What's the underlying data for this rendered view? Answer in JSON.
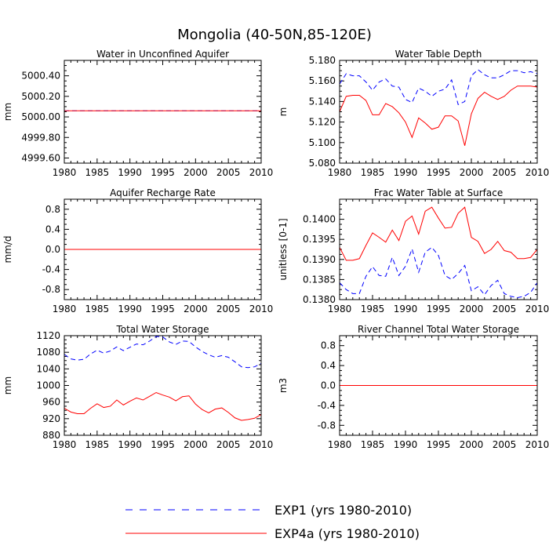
{
  "figure": {
    "title": "Mongolia (40-50N,85-120E)"
  },
  "legend": [
    {
      "label": "EXP1 (yrs 1980-2010)",
      "color": "#0000ff",
      "dash": "dashed"
    },
    {
      "label": "EXP4a (yrs 1980-2010)",
      "color": "#ff0000",
      "dash": "solid"
    }
  ],
  "chart_data": [
    {
      "type": "line",
      "title": "Water in Unconfined Aquifer",
      "ylabel": "mm",
      "xlim": [
        1980,
        2010
      ],
      "ylim": [
        4999.55,
        5000.55
      ],
      "xticks": [
        1980,
        1985,
        1990,
        1995,
        2000,
        2005,
        2010
      ],
      "yticks": [
        4999.6,
        4999.8,
        5000.0,
        5000.2,
        5000.4
      ],
      "ytick_labels": [
        "4999.60",
        "4999.80",
        "5000.00",
        "5000.20",
        "5000.40"
      ],
      "series": [
        {
          "name": "EXP1 (yrs 1980-2010)",
          "color": "#0000ff",
          "dash": "dashed",
          "x": [
            1980,
            2010
          ],
          "y": [
            5000.06,
            5000.06
          ]
        },
        {
          "name": "EXP4a (yrs 1980-2010)",
          "color": "#ff0000",
          "dash": "solid",
          "x": [
            1980,
            2010
          ],
          "y": [
            5000.06,
            5000.06
          ]
        }
      ]
    },
    {
      "type": "line",
      "title": "Water Table Depth",
      "ylabel": "m",
      "xlim": [
        1980,
        2010
      ],
      "ylim": [
        5.08,
        5.18
      ],
      "xticks": [
        1980,
        1985,
        1990,
        1995,
        2000,
        2005,
        2010
      ],
      "yticks": [
        5.08,
        5.1,
        5.12,
        5.14,
        5.16,
        5.18
      ],
      "ytick_labels": [
        "5.080",
        "5.100",
        "5.120",
        "5.140",
        "5.160",
        "5.180"
      ],
      "series": [
        {
          "name": "EXP1 (yrs 1980-2010)",
          "color": "#0000ff",
          "dash": "dashed",
          "x": [
            1980,
            1981,
            1982,
            1983,
            1984,
            1985,
            1986,
            1987,
            1988,
            1989,
            1990,
            1991,
            1992,
            1993,
            1994,
            1995,
            1996,
            1997,
            1998,
            1999,
            2000,
            2001,
            2002,
            2003,
            2004,
            2005,
            2006,
            2007,
            2008,
            2009,
            2010
          ],
          "y": [
            5.157,
            5.167,
            5.165,
            5.165,
            5.159,
            5.151,
            5.159,
            5.162,
            5.155,
            5.154,
            5.142,
            5.139,
            5.153,
            5.15,
            5.145,
            5.15,
            5.152,
            5.161,
            5.137,
            5.14,
            5.165,
            5.171,
            5.166,
            5.163,
            5.163,
            5.166,
            5.17,
            5.17,
            5.168,
            5.169,
            5.167
          ]
        },
        {
          "name": "EXP4a (yrs 1980-2010)",
          "color": "#ff0000",
          "dash": "solid",
          "x": [
            1980,
            1981,
            1982,
            1983,
            1984,
            1985,
            1986,
            1987,
            1988,
            1989,
            1990,
            1991,
            1992,
            1993,
            1994,
            1995,
            1996,
            1997,
            1998,
            1999,
            2000,
            2001,
            2002,
            2003,
            2004,
            2005,
            2006,
            2007,
            2008,
            2009,
            2010
          ],
          "y": [
            5.13,
            5.145,
            5.146,
            5.146,
            5.141,
            5.127,
            5.127,
            5.138,
            5.135,
            5.129,
            5.12,
            5.105,
            5.124,
            5.119,
            5.113,
            5.115,
            5.126,
            5.126,
            5.121,
            5.097,
            5.128,
            5.143,
            5.149,
            5.145,
            5.142,
            5.145,
            5.151,
            5.155,
            5.155,
            5.155,
            5.154
          ]
        }
      ]
    },
    {
      "type": "line",
      "title": "Aquifer Recharge Rate",
      "ylabel": "mm/d",
      "xlim": [
        1980,
        2010
      ],
      "ylim": [
        -1.0,
        1.0
      ],
      "xticks": [
        1980,
        1985,
        1990,
        1995,
        2000,
        2005,
        2010
      ],
      "yticks": [
        -0.8,
        -0.4,
        0.0,
        0.4,
        0.8
      ],
      "ytick_labels": [
        "-0.8",
        "-0.4",
        "0.0",
        "0.4",
        "0.8"
      ],
      "series": [
        {
          "name": "EXP1 (yrs 1980-2010)",
          "color": "#0000ff",
          "dash": "dashed",
          "x": [
            1980,
            2010
          ],
          "y": [
            0.0,
            0.0
          ]
        },
        {
          "name": "EXP4a (yrs 1980-2010)",
          "color": "#ff0000",
          "dash": "solid",
          "x": [
            1980,
            2010
          ],
          "y": [
            0.0,
            0.0
          ]
        }
      ]
    },
    {
      "type": "line",
      "title": "Frac Water Table at Surface",
      "ylabel": "unitless [0-1]",
      "xlim": [
        1980,
        2010
      ],
      "ylim": [
        0.138,
        0.1405
      ],
      "xticks": [
        1980,
        1985,
        1990,
        1995,
        2000,
        2005,
        2010
      ],
      "yticks": [
        0.138,
        0.1385,
        0.139,
        0.1395,
        0.14
      ],
      "ytick_labels": [
        "0.1380",
        "0.1385",
        "0.1390",
        "0.1395",
        "0.1400"
      ],
      "series": [
        {
          "name": "EXP1 (yrs 1980-2010)",
          "color": "#0000ff",
          "dash": "dashed",
          "x": [
            1980,
            1981,
            1982,
            1983,
            1984,
            1985,
            1986,
            1987,
            1988,
            1989,
            1990,
            1991,
            1992,
            1993,
            1994,
            1995,
            1996,
            1997,
            1998,
            1999,
            2000,
            2001,
            2002,
            2003,
            2004,
            2005,
            2006,
            2007,
            2008,
            2009,
            2010
          ],
          "y": [
            0.13842,
            0.13825,
            0.13815,
            0.13815,
            0.13858,
            0.13882,
            0.1386,
            0.13858,
            0.13905,
            0.1386,
            0.13883,
            0.13926,
            0.13868,
            0.13918,
            0.1393,
            0.1391,
            0.1386,
            0.1385,
            0.13865,
            0.13885,
            0.13822,
            0.13832,
            0.13812,
            0.13835,
            0.13848,
            0.13815,
            0.13808,
            0.13805,
            0.13808,
            0.13818,
            0.13842
          ]
        },
        {
          "name": "EXP4a (yrs 1980-2010)",
          "color": "#ff0000",
          "dash": "solid",
          "x": [
            1980,
            1981,
            1982,
            1983,
            1984,
            1985,
            1986,
            1987,
            1988,
            1989,
            1990,
            1991,
            1992,
            1993,
            1994,
            1995,
            1996,
            1997,
            1998,
            1999,
            2000,
            2001,
            2002,
            2003,
            2004,
            2005,
            2006,
            2007,
            2008,
            2009,
            2010
          ],
          "y": [
            0.1393,
            0.13898,
            0.13898,
            0.13902,
            0.13935,
            0.13966,
            0.13955,
            0.13943,
            0.13973,
            0.13947,
            0.13995,
            0.14008,
            0.13963,
            0.1402,
            0.1403,
            0.14003,
            0.13978,
            0.1398,
            0.14015,
            0.1403,
            0.13955,
            0.13945,
            0.13915,
            0.13925,
            0.13945,
            0.13922,
            0.13918,
            0.13902,
            0.13902,
            0.13905,
            0.13925
          ]
        }
      ]
    },
    {
      "type": "line",
      "title": "Total Water Storage",
      "ylabel": "mm",
      "xlim": [
        1980,
        2010
      ],
      "ylim": [
        880,
        1120
      ],
      "xticks": [
        1980,
        1985,
        1990,
        1995,
        2000,
        2005,
        2010
      ],
      "yticks": [
        880,
        920,
        960,
        1000,
        1040,
        1080,
        1120
      ],
      "ytick_labels": [
        "880",
        "920",
        "960",
        "1000",
        "1040",
        "1080",
        "1120"
      ],
      "series": [
        {
          "name": "EXP1 (yrs 1980-2010)",
          "color": "#0000ff",
          "dash": "dashed",
          "x": [
            1980,
            1981,
            1982,
            1983,
            1984,
            1985,
            1986,
            1987,
            1988,
            1989,
            1990,
            1991,
            1992,
            1993,
            1994,
            1995,
            1996,
            1997,
            1998,
            1999,
            2000,
            2001,
            2002,
            2003,
            2004,
            2005,
            2006,
            2007,
            2008,
            2009,
            2010
          ],
          "y": [
            1075,
            1064,
            1061,
            1063,
            1076,
            1085,
            1078,
            1083,
            1093,
            1084,
            1092,
            1100,
            1098,
            1107,
            1118,
            1117,
            1105,
            1099,
            1107,
            1106,
            1093,
            1082,
            1074,
            1068,
            1072,
            1068,
            1057,
            1045,
            1043,
            1045,
            1053
          ]
        },
        {
          "name": "EXP4a (yrs 1980-2010)",
          "color": "#ff0000",
          "dash": "solid",
          "x": [
            1980,
            1981,
            1982,
            1983,
            1984,
            1985,
            1986,
            1987,
            1988,
            1989,
            1990,
            1991,
            1992,
            1993,
            1994,
            1995,
            1996,
            1997,
            1998,
            1999,
            2000,
            2001,
            2002,
            2003,
            2004,
            2005,
            2006,
            2007,
            2008,
            2009,
            2010
          ],
          "y": [
            945,
            936,
            932,
            932,
            945,
            956,
            947,
            950,
            965,
            953,
            962,
            970,
            965,
            974,
            983,
            977,
            972,
            963,
            973,
            975,
            955,
            942,
            934,
            943,
            946,
            935,
            922,
            916,
            918,
            921,
            930
          ]
        }
      ]
    },
    {
      "type": "line",
      "title": "River Channel Total Water Storage",
      "ylabel": "m3",
      "xlim": [
        1980,
        2010
      ],
      "ylim": [
        -1.0,
        1.0
      ],
      "xticks": [
        1980,
        1985,
        1990,
        1995,
        2000,
        2005,
        2010
      ],
      "yticks": [
        -0.8,
        -0.4,
        0.0,
        0.4,
        0.8
      ],
      "ytick_labels": [
        "-0.8",
        "-0.4",
        "0.0",
        "0.4",
        "0.8"
      ],
      "series": [
        {
          "name": "EXP1 (yrs 1980-2010)",
          "color": "#0000ff",
          "dash": "dashed",
          "x": [
            1980,
            2010
          ],
          "y": [
            0.0,
            0.0
          ]
        },
        {
          "name": "EXP4a (yrs 1980-2010)",
          "color": "#ff0000",
          "dash": "solid",
          "x": [
            1980,
            2010
          ],
          "y": [
            0.0,
            0.0
          ]
        }
      ]
    }
  ]
}
